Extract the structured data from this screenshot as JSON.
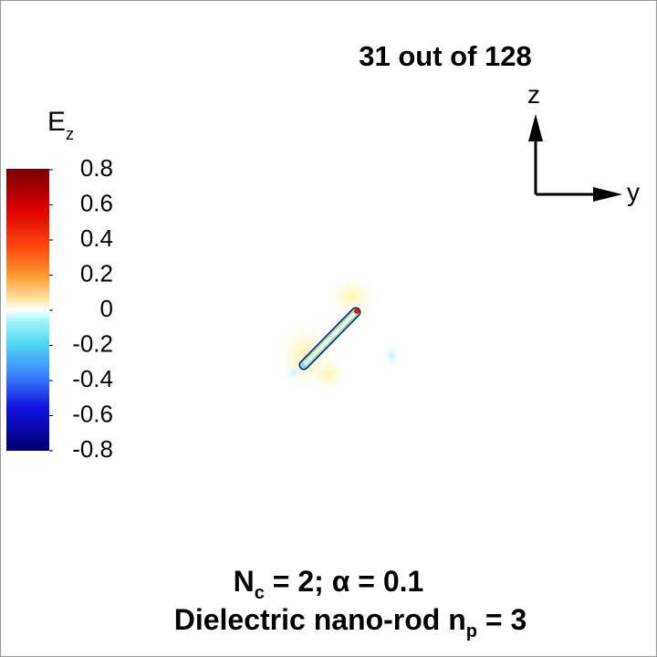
{
  "frame_title": "31  out of 128",
  "colorbar": {
    "label": "E",
    "label_sub": "z",
    "range": [
      -0.8,
      0.8
    ],
    "ticks": [
      0.8,
      0.6,
      0.4,
      0.2,
      0,
      -0.2,
      -0.4,
      -0.6,
      -0.8
    ]
  },
  "axes": {
    "vertical": "z",
    "horizontal": "y"
  },
  "caption": {
    "line1": [
      "N",
      "c",
      " = 2; α = 0.1"
    ],
    "line2": [
      "Dielectric nano-rod n",
      "p",
      " = 3"
    ]
  }
}
